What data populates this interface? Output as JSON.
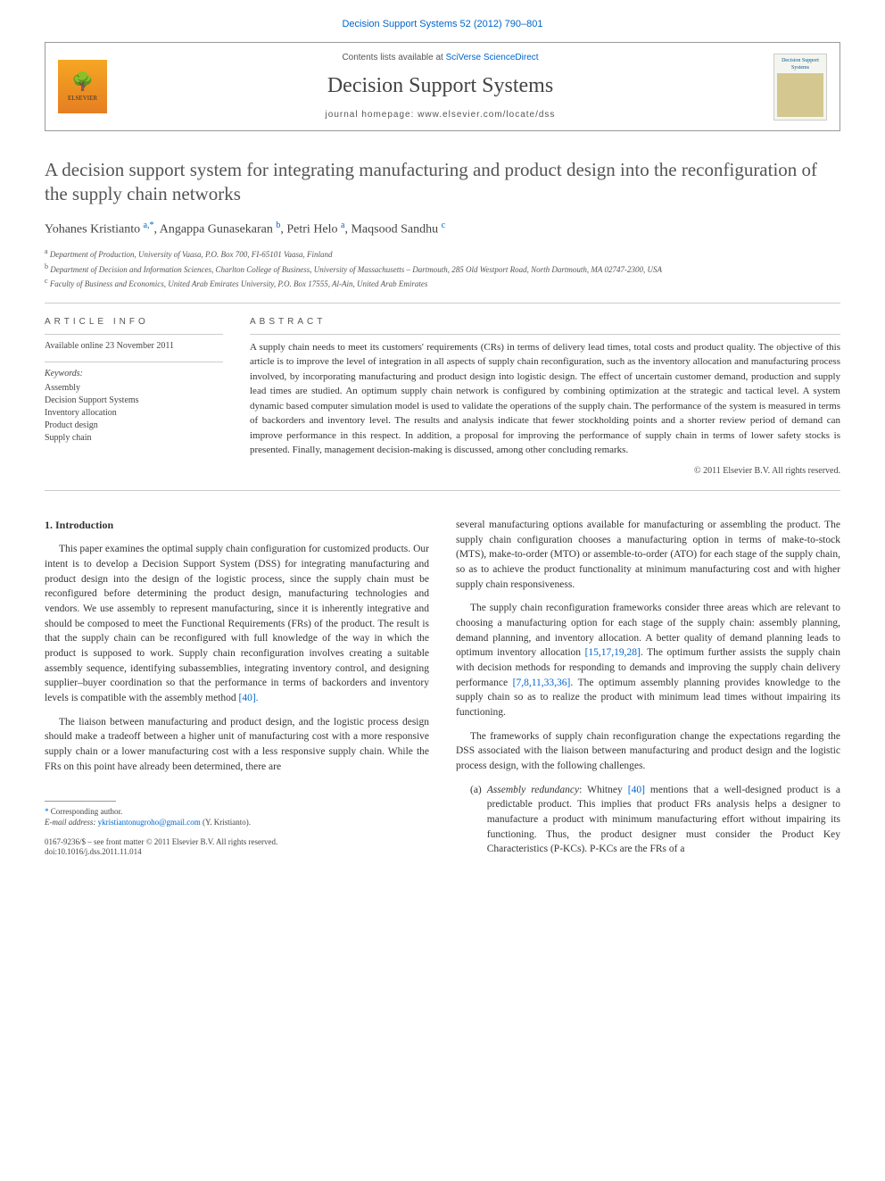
{
  "top_link": "Decision Support Systems 52 (2012) 790–801",
  "header": {
    "contents_prefix": "Contents lists available at ",
    "contents_link": "SciVerse ScienceDirect",
    "journal_name": "Decision Support Systems",
    "homepage_label": "journal homepage: www.elsevier.com/locate/dss",
    "elsevier": "ELSEVIER",
    "cover_text": "Decision Support Systems"
  },
  "title": "A decision support system for integrating manufacturing and product design into the reconfiguration of the supply chain networks",
  "authors_html": "Yohanes Kristianto |a|,|*|, Angappa Gunasekaran |b|, Petri Helo |a|, Maqsood Sandhu |c|",
  "authors": [
    {
      "name": "Yohanes Kristianto ",
      "sup": "a,",
      "star": "*"
    },
    {
      "name": ", Angappa Gunasekaran ",
      "sup": "b"
    },
    {
      "name": ", Petri Helo ",
      "sup": "a"
    },
    {
      "name": ", Maqsood Sandhu ",
      "sup": "c"
    }
  ],
  "affiliations": [
    {
      "sup": "a",
      "text": " Department of Production, University of Vaasa, P.O. Box 700, FI-65101 Vaasa, Finland"
    },
    {
      "sup": "b",
      "text": " Department of Decision and Information Sciences, Charlton College of Business, University of Massachusetts – Dartmouth, 285 Old Westport Road, North Dartmouth, MA 02747-2300, USA"
    },
    {
      "sup": "c",
      "text": " Faculty of Business and Economics, United Arab Emirates University, P.O. Box 17555, Al-Ain, United Arab Emirates"
    }
  ],
  "article_info_heading": "ARTICLE INFO",
  "available_online": "Available online 23 November 2011",
  "keywords_label": "Keywords:",
  "keywords": [
    "Assembly",
    "Decision Support Systems",
    "Inventory allocation",
    "Product design",
    "Supply chain"
  ],
  "abstract_heading": "ABSTRACT",
  "abstract": "A supply chain needs to meet its customers' requirements (CRs) in terms of delivery lead times, total costs and product quality. The objective of this article is to improve the level of integration in all aspects of supply chain reconfiguration, such as the inventory allocation and manufacturing process involved, by incorporating manufacturing and product design into logistic design. The effect of uncertain customer demand, production and supply lead times are studied. An optimum supply chain network is configured by combining optimization at the strategic and tactical level. A system dynamic based computer simulation model is used to validate the operations of the supply chain. The performance of the system is measured in terms of backorders and inventory level. The results and analysis indicate that fewer stockholding points and a shorter review period of demand can improve performance in this respect. In addition, a proposal for improving the performance of supply chain in terms of lower safety stocks is presented. Finally, management decision-making is discussed, among other concluding remarks.",
  "abstract_copyright": "© 2011 Elsevier B.V. All rights reserved.",
  "body": {
    "section_heading": "1. Introduction",
    "left_paragraphs": [
      "This paper examines the optimal supply chain configuration for customized products. Our intent is to develop a Decision Support System (DSS) for integrating manufacturing and product design into the design of the logistic process, since the supply chain must be reconfigured before determining the product design, manufacturing technologies and vendors. We use assembly to represent manufacturing, since it is inherently integrative and should be composed to meet the Functional Requirements (FRs) of the product. The result is that the supply chain can be reconfigured with full knowledge of the way in which the product is supposed to work. Supply chain reconfiguration involves creating a suitable assembly sequence, identifying subassemblies, integrating inventory control, and designing supplier–buyer coordination so that the performance in terms of backorders and inventory levels is compatible with the assembly method ",
      "The liaison between manufacturing and product design, and the logistic process design should make a tradeoff between a higher unit of manufacturing cost with a more responsive supply chain or a lower manufacturing cost with a less responsive supply chain. While the FRs on this point have already been determined, there are"
    ],
    "left_ref1": "[40].",
    "right_paragraphs": [
      "several manufacturing options available for manufacturing or assembling the product. The supply chain configuration chooses a manufacturing option in terms of make-to-stock (MTS), make-to-order (MTO) or assemble-to-order (ATO) for each stage of the supply chain, so as to achieve the product functionality at minimum manufacturing cost and with higher supply chain responsiveness.",
      "The supply chain reconfiguration frameworks consider three areas which are relevant to choosing a manufacturing option for each stage of the supply chain: assembly planning, demand planning, and inventory allocation. A better quality of demand planning leads to optimum inventory allocation |REF1|. The optimum further assists the supply chain with decision methods for responding to demands and improving the supply chain delivery performance |REF2|. The optimum assembly planning provides knowledge to the supply chain so as to realize the product with minimum lead times without impairing its functioning.",
      "The frameworks of supply chain reconfiguration change the expectations regarding the DSS associated with the liaison between manufacturing and product design and the logistic process design, with the following challenges."
    ],
    "right_ref1": "[15,17,19,28]",
    "right_ref2": "[7,8,11,33,36]",
    "list_item_marker": "(a)",
    "list_item_label": "Assembly redundancy",
    "list_item_text": ": Whitney |REF| mentions that a well-designed product is a predictable product. This implies that product FRs analysis helps a designer to manufacture a product with minimum manufacturing effort without impairing its functioning. Thus, the product designer must consider the Product Key Characteristics (P-KCs). P-KCs are the FRs of a",
    "list_item_ref": "[40]"
  },
  "footnote1": "* Corresponding author.",
  "footnote2_label": "E-mail address: ",
  "footnote2_email": "ykristiantonugroho@gmail.com",
  "footnote2_tail": " (Y. Kristianto).",
  "doi_line1": "0167-9236/$ – see front matter © 2011 Elsevier B.V. All rights reserved.",
  "doi_line2": "doi:10.1016/j.dss.2011.11.014"
}
